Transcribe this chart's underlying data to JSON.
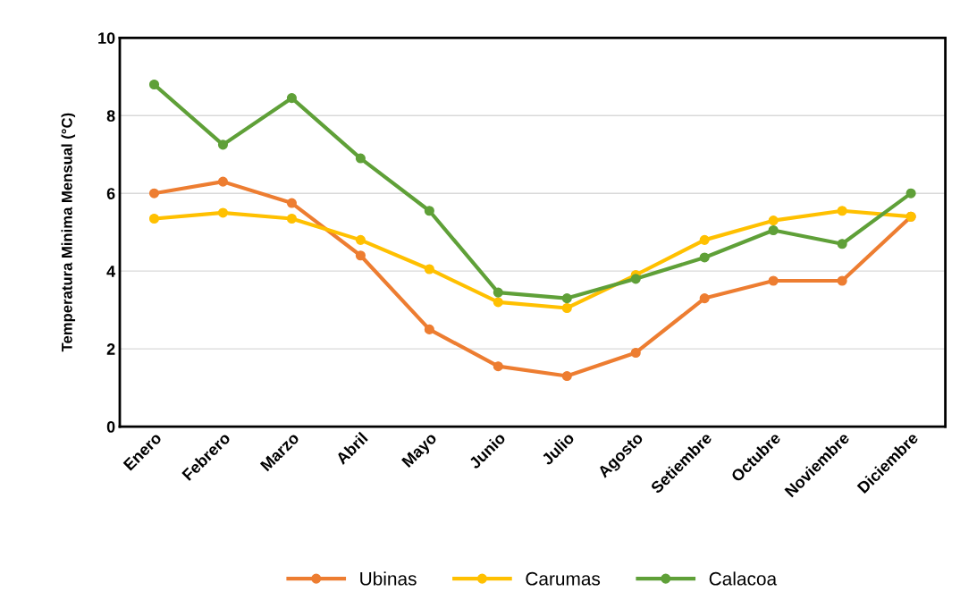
{
  "chart_data": {
    "type": "line",
    "ylabel": "Temperatura Minima Mensual (°C)",
    "categories": [
      "Enero",
      "Febrero",
      "Marzo",
      "Abril",
      "Mayo",
      "Junio",
      "Julio",
      "Agosto",
      "Setiembre",
      "Octubre",
      "Noviembre",
      "Diciembre"
    ],
    "series": [
      {
        "name": "Ubinas",
        "color": "#ed7d31",
        "values": [
          6.0,
          6.3,
          5.75,
          4.4,
          2.5,
          1.55,
          1.3,
          1.9,
          3.3,
          3.75,
          3.75,
          5.4
        ]
      },
      {
        "name": "Carumas",
        "color": "#ffc000",
        "values": [
          5.35,
          5.5,
          5.35,
          4.8,
          4.05,
          3.2,
          3.05,
          3.9,
          4.8,
          5.3,
          5.55,
          5.4
        ]
      },
      {
        "name": "Calacoa",
        "color": "#5fa038",
        "values": [
          8.8,
          7.25,
          8.45,
          6.9,
          5.55,
          3.45,
          3.3,
          3.8,
          4.35,
          5.05,
          4.7,
          6.0
        ]
      }
    ],
    "ylim": [
      0,
      10
    ],
    "yticks": [
      0,
      2,
      4,
      6,
      8,
      10
    ],
    "grid": "y",
    "legend": "bottom",
    "marker": "circle",
    "line_style": "solid"
  }
}
